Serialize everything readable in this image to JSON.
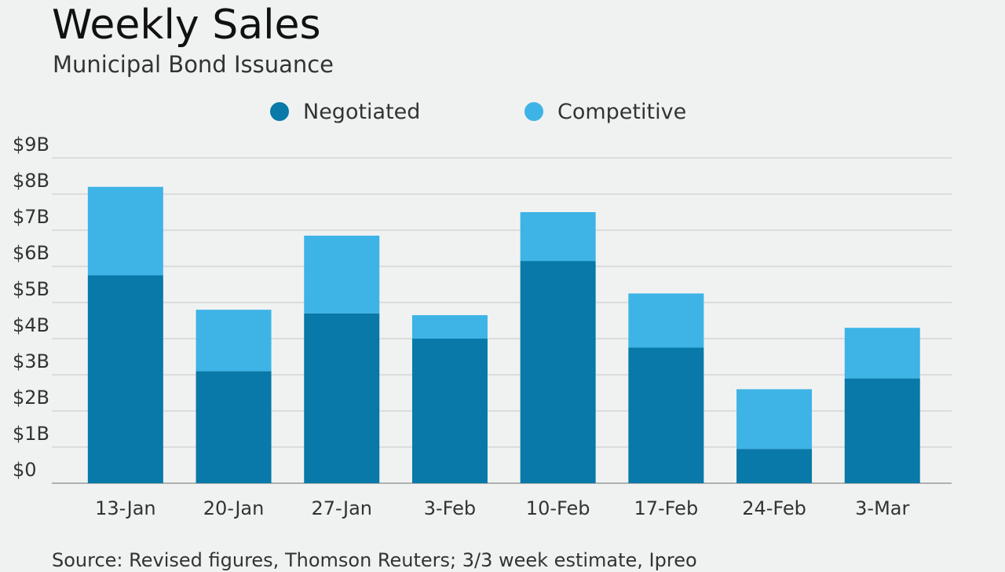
{
  "title": "Weekly Sales",
  "subtitle": "Municipal Bond Issuance",
  "source": "Source: Revised figures, Thomson Reuters; 3/3 week estimate, Ipreo",
  "legend": [
    {
      "name": "Negotiated",
      "color": "#0879a8"
    },
    {
      "name": "Competitive",
      "color": "#3eb3e6"
    }
  ],
  "chart_data": {
    "type": "bar",
    "stacked": true,
    "title": "Weekly Sales",
    "subtitle": "Municipal Bond Issuance",
    "categories": [
      "13-Jan",
      "20-Jan",
      "27-Jan",
      "3-Feb",
      "10-Feb",
      "17-Feb",
      "24-Feb",
      "3-Mar"
    ],
    "series": [
      {
        "name": "Negotiated",
        "color": "#0879a8",
        "values": [
          5.75,
          3.1,
          4.7,
          4.0,
          6.15,
          3.75,
          0.95,
          2.9
        ]
      },
      {
        "name": "Competitive",
        "color": "#3eb3e6",
        "values": [
          2.45,
          1.7,
          2.15,
          0.65,
          1.35,
          1.5,
          1.65,
          1.4
        ]
      }
    ],
    "y_ticks": [
      "$0",
      "$1B",
      "$2B",
      "$3B",
      "$4B",
      "$5B",
      "$6B",
      "$7B",
      "$8B",
      "$9B"
    ],
    "ylim": [
      0,
      9
    ],
    "grid": true,
    "legend_position": "top"
  }
}
